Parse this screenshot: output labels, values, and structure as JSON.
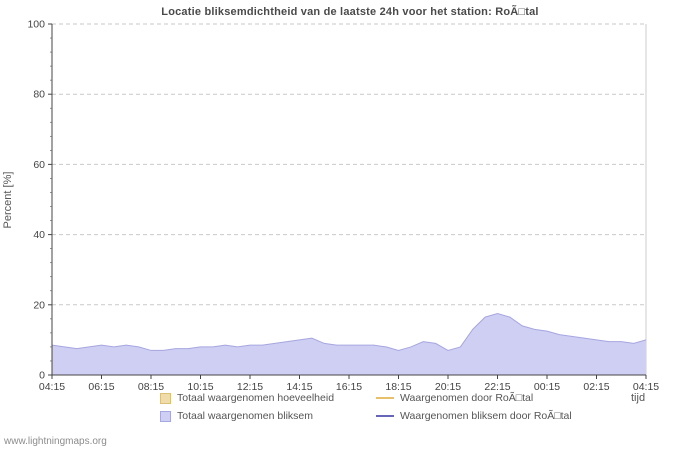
{
  "page": {
    "watermark": "www.lightningmaps.org"
  },
  "chart_data": {
    "type": "area",
    "title": "Locatie bliksemdichtheid van de laatste 24h voor het station: RoÃ□tal",
    "ylabel": "Percent  [%]",
    "xlabel": "tijd",
    "ylim": [
      0,
      100
    ],
    "y_ticks": [
      0,
      20,
      40,
      60,
      80,
      100
    ],
    "x_tick_labels": [
      "04:15",
      "06:15",
      "08:15",
      "10:15",
      "12:15",
      "14:15",
      "16:15",
      "18:15",
      "20:15",
      "22:15",
      "00:15",
      "02:15",
      "04:15"
    ],
    "grid": "horizontal-dashed",
    "legend_position": "bottom",
    "colors": {
      "axis": "#444444",
      "gridline": "#c9c9c9",
      "area_purple": "#cfcff4",
      "area_tan": "#f0dcaa",
      "line_orange": "#e8c06a",
      "line_purple": "#6666b8"
    },
    "series": [
      {
        "name": "Totaal waargenomen hoeveelheid",
        "type": "area",
        "color": "#f0dcaa",
        "edge": "#dcc07a",
        "values": [
          0,
          0
        ]
      },
      {
        "name": "Totaal waargenomen bliksem",
        "type": "area",
        "color": "#cfcff4",
        "edge": "#a6a6e0",
        "values": [
          8.5,
          8,
          7.5,
          8,
          8.5,
          8,
          8.5,
          8,
          7,
          7,
          7.5,
          7.5,
          8,
          8,
          8.5,
          8,
          8.5,
          8.5,
          9,
          9.5,
          10,
          10.5,
          9,
          8.5,
          8.5,
          8.5,
          8.5,
          8,
          7,
          8,
          9.5,
          9,
          7,
          8,
          13,
          16.5,
          17.5,
          16.5,
          14,
          13,
          12.5,
          11.5,
          11,
          10.5,
          10,
          9.5,
          9.5,
          9,
          10
        ]
      },
      {
        "name": "Waargenomen door RoÃ□tal",
        "type": "line",
        "color": "#e8c06a",
        "values": [
          0,
          0
        ]
      },
      {
        "name": "Waargenomen bliksem door RoÃ□tal",
        "type": "line",
        "color": "#6666b8",
        "values": [
          0,
          0
        ]
      }
    ]
  }
}
